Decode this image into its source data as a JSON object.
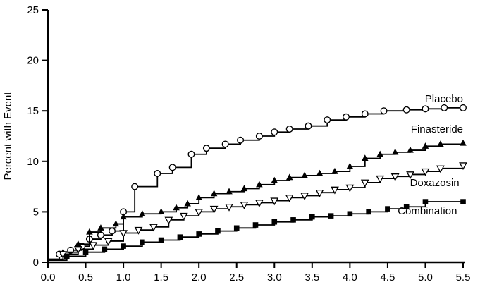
{
  "chart_data": {
    "type": "line",
    "subtype": "step-after",
    "title": "",
    "xlabel": "",
    "ylabel": "Percent with Event",
    "xlim": [
      0,
      5.5
    ],
    "ylim": [
      0,
      25
    ],
    "grid": false,
    "legend_position": "inline-right",
    "xticks": [
      "0.0",
      "0.5",
      "1.0",
      "1.5",
      "2.0",
      "2.5",
      "3.0",
      "3.5",
      "4.0",
      "4.5",
      "5.0",
      "5.5"
    ],
    "yticks": [
      "0",
      "5",
      "10",
      "15",
      "20",
      "25"
    ],
    "axis_color": "#000000",
    "series": [
      {
        "name": "Placebo",
        "marker": "circle-open",
        "color": "#000000",
        "label": {
          "x": 5.5,
          "y": 16.2
        },
        "points": [
          [
            0,
            0.3
          ],
          [
            0.15,
            0.8
          ],
          [
            0.3,
            1.2
          ],
          [
            0.45,
            1.6
          ],
          [
            0.55,
            2.3
          ],
          [
            0.7,
            2.7
          ],
          [
            0.85,
            3.1
          ],
          [
            1.0,
            5.0
          ],
          [
            1.15,
            7.5
          ],
          [
            1.45,
            8.8
          ],
          [
            1.65,
            9.4
          ],
          [
            1.9,
            10.7
          ],
          [
            2.1,
            11.3
          ],
          [
            2.35,
            11.7
          ],
          [
            2.55,
            12.1
          ],
          [
            2.8,
            12.5
          ],
          [
            3.0,
            12.9
          ],
          [
            3.2,
            13.2
          ],
          [
            3.45,
            13.5
          ],
          [
            3.7,
            14.1
          ],
          [
            3.95,
            14.4
          ],
          [
            4.2,
            14.7
          ],
          [
            4.45,
            15.0
          ],
          [
            4.75,
            15.1
          ],
          [
            5.0,
            15.2
          ],
          [
            5.25,
            15.3
          ],
          [
            5.5,
            15.3
          ]
        ]
      },
      {
        "name": "Finasteride",
        "marker": "triangle-up-filled",
        "color": "#000000",
        "label": {
          "x": 5.5,
          "y": 13.2
        },
        "points": [
          [
            0,
            0.3
          ],
          [
            0.2,
            1.0
          ],
          [
            0.4,
            1.8
          ],
          [
            0.55,
            3.0
          ],
          [
            0.7,
            3.4
          ],
          [
            0.9,
            3.8
          ],
          [
            1.0,
            4.5
          ],
          [
            1.25,
            4.8
          ],
          [
            1.5,
            5.0
          ],
          [
            1.7,
            5.4
          ],
          [
            1.85,
            5.8
          ],
          [
            2.0,
            6.4
          ],
          [
            2.2,
            6.8
          ],
          [
            2.4,
            7.0
          ],
          [
            2.6,
            7.3
          ],
          [
            2.8,
            7.7
          ],
          [
            3.0,
            8.1
          ],
          [
            3.2,
            8.4
          ],
          [
            3.4,
            8.6
          ],
          [
            3.6,
            8.8
          ],
          [
            3.8,
            9.0
          ],
          [
            4.0,
            9.5
          ],
          [
            4.2,
            10.3
          ],
          [
            4.4,
            10.7
          ],
          [
            4.6,
            10.9
          ],
          [
            4.8,
            11.1
          ],
          [
            5.0,
            11.5
          ],
          [
            5.2,
            11.7
          ],
          [
            5.5,
            11.8
          ]
        ]
      },
      {
        "name": "Doxazosin",
        "marker": "triangle-down-open",
        "color": "#000000",
        "label": {
          "x": 5.45,
          "y": 7.9
        },
        "points": [
          [
            0,
            0.2
          ],
          [
            0.2,
            0.8
          ],
          [
            0.4,
            1.3
          ],
          [
            0.6,
            1.7
          ],
          [
            0.8,
            2.1
          ],
          [
            1.0,
            2.9
          ],
          [
            1.2,
            3.2
          ],
          [
            1.4,
            3.5
          ],
          [
            1.6,
            4.2
          ],
          [
            1.8,
            4.6
          ],
          [
            2.0,
            5.0
          ],
          [
            2.2,
            5.3
          ],
          [
            2.4,
            5.5
          ],
          [
            2.6,
            5.7
          ],
          [
            2.8,
            5.9
          ],
          [
            3.0,
            6.1
          ],
          [
            3.2,
            6.4
          ],
          [
            3.4,
            6.6
          ],
          [
            3.6,
            6.9
          ],
          [
            3.8,
            7.2
          ],
          [
            4.0,
            7.4
          ],
          [
            4.2,
            7.9
          ],
          [
            4.4,
            8.3
          ],
          [
            4.6,
            8.5
          ],
          [
            4.8,
            8.7
          ],
          [
            5.0,
            9.0
          ],
          [
            5.2,
            9.3
          ],
          [
            5.5,
            9.6
          ]
        ]
      },
      {
        "name": "Combination",
        "marker": "square-filled",
        "color": "#000000",
        "label": {
          "x": 5.42,
          "y": 5.1
        },
        "points": [
          [
            0,
            0.2
          ],
          [
            0.25,
            0.6
          ],
          [
            0.5,
            1.0
          ],
          [
            0.75,
            1.3
          ],
          [
            1.0,
            1.6
          ],
          [
            1.25,
            2.0
          ],
          [
            1.5,
            2.2
          ],
          [
            1.75,
            2.5
          ],
          [
            2.0,
            2.8
          ],
          [
            2.25,
            3.1
          ],
          [
            2.5,
            3.4
          ],
          [
            2.75,
            3.7
          ],
          [
            3.0,
            4.0
          ],
          [
            3.25,
            4.2
          ],
          [
            3.5,
            4.5
          ],
          [
            3.75,
            4.6
          ],
          [
            4.0,
            4.8
          ],
          [
            4.25,
            5.0
          ],
          [
            4.5,
            5.3
          ],
          [
            4.75,
            5.5
          ],
          [
            5.0,
            6.0
          ],
          [
            5.5,
            6.0
          ]
        ]
      }
    ]
  }
}
